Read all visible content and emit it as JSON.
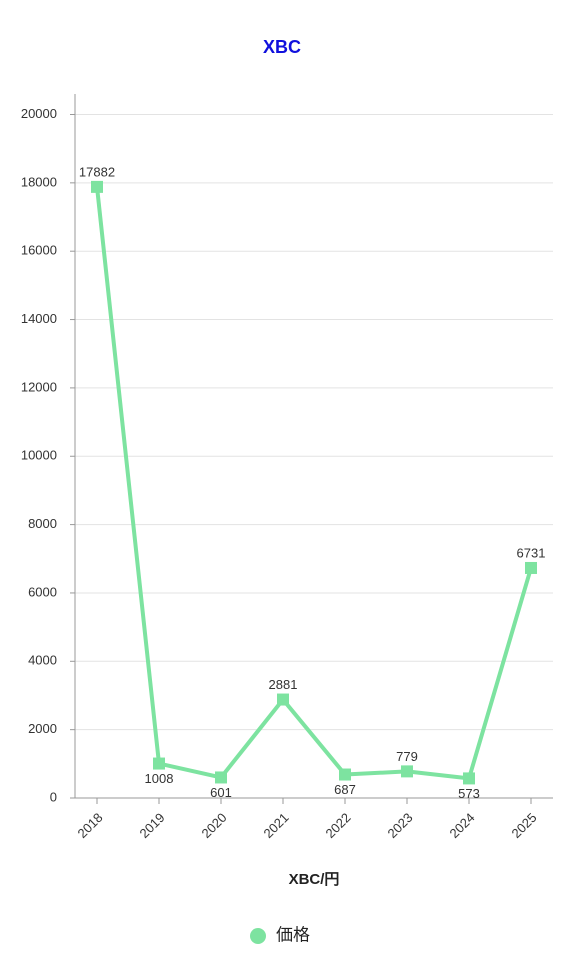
{
  "chart_data": {
    "type": "line",
    "title": "XBC",
    "x_label": "XBC/円",
    "categories": [
      "2018",
      "2019",
      "2020",
      "2021",
      "2022",
      "2023",
      "2024",
      "2025"
    ],
    "series": [
      {
        "name": "価格",
        "color": "#7de3a0",
        "values": [
          17882,
          1008,
          601,
          2881,
          687,
          779,
          573,
          6731
        ]
      }
    ],
    "ylim": [
      0,
      20600
    ],
    "yticks": [
      0,
      2000,
      4000,
      6000,
      8000,
      10000,
      12000,
      14000,
      16000,
      18000,
      20000
    ],
    "grid": true,
    "legend": "bottom"
  }
}
